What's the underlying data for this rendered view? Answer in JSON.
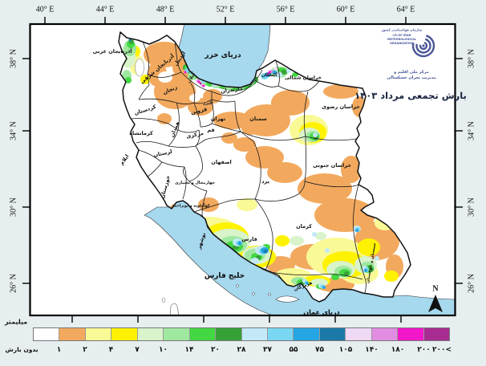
{
  "title": {
    "text": "بارش تجمعی مرداد ۱۴۰۳"
  },
  "logo": {
    "org_fa": "سازمان هواشناسی کشور",
    "org_en_1": "I.R.OF IRAN",
    "org_en_2": "METEOROLOGICAL",
    "org_en_3": "ORGANIZATION",
    "center_fa_1": "مرکز ملی اقلیم و",
    "center_fa_2": "مدیریت بحران خشکسالی",
    "color": "#46549A"
  },
  "axes": {
    "top": [
      "40° E",
      "44° E",
      "48° E",
      "52° E",
      "56° E",
      "60° E",
      "64° E"
    ],
    "left": [
      "38° N",
      "34° N",
      "30° N",
      "26° N"
    ],
    "right": [
      "38° N",
      "34° N",
      "30° N",
      "26° N"
    ]
  },
  "compass": {
    "label": "N"
  },
  "seas": [
    {
      "name": "دریای خزر"
    },
    {
      "name": "خلیج فارس"
    },
    {
      "name": "دریای عمان"
    }
  ],
  "provinces": [
    {
      "name": "آذربایجان غربی"
    },
    {
      "name": "آذربایجان شرقی"
    },
    {
      "name": "اردبیل"
    },
    {
      "name": "گیلان"
    },
    {
      "name": "زنجان"
    },
    {
      "name": "قزوین"
    },
    {
      "name": "البرز"
    },
    {
      "name": "تهران"
    },
    {
      "name": "قم"
    },
    {
      "name": "مرکزی"
    },
    {
      "name": "همدان"
    },
    {
      "name": "کردستان"
    },
    {
      "name": "کرمانشاه"
    },
    {
      "name": "ایلام"
    },
    {
      "name": "لرستان"
    },
    {
      "name": "خوزستان"
    },
    {
      "name": "اصفهان"
    },
    {
      "name": "چهارمحال و بختیاری"
    },
    {
      "name": "کهگیلویه و بویراحمد"
    },
    {
      "name": "مازندران"
    },
    {
      "name": "گلستان"
    },
    {
      "name": "خراسان شمالی"
    },
    {
      "name": "خراسان رضوی"
    },
    {
      "name": "سمنان"
    },
    {
      "name": "خراسان جنوبی"
    },
    {
      "name": "یزد"
    },
    {
      "name": "فارس"
    },
    {
      "name": "بوشهر"
    },
    {
      "name": "کرمان"
    },
    {
      "name": "هرمزگان"
    },
    {
      "name": "سیستان و بلوچستان"
    }
  ],
  "legend": {
    "unit": "میلیمتر",
    "labels": [
      "بدون بارش",
      "۱",
      "۲",
      "۴",
      "۷",
      "۱۰",
      "۱۴",
      "۲۰",
      "۲۸",
      "۳۷",
      "۵۵",
      "۷۵",
      "۱۰۵",
      "۱۴۰",
      "۱۸۰",
      "۲۰۰",
      ">۲۰۰"
    ],
    "colors": [
      "#FFFFFF",
      "#F2A95E",
      "#F9F995",
      "#FEF200",
      "#D9F3CB",
      "#9FE89F",
      "#43D843",
      "#36A136",
      "#C3E9F8",
      "#7AD7F2",
      "#25A5E3",
      "#1A79A8",
      "#F0D9F5",
      "#E18DE1",
      "#F317CB",
      "#A92C93"
    ]
  },
  "map_colors": {
    "sea": "#A6D8EE",
    "land": "#FFFFFF",
    "background": "#E7EEEF",
    "border": "#111111"
  }
}
